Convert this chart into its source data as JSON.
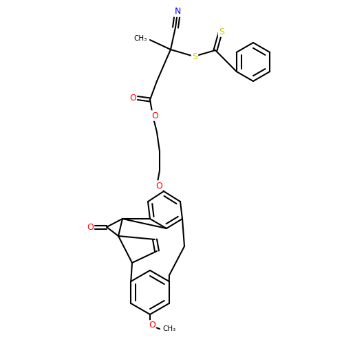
{
  "background_color": "#ffffff",
  "bond_color": "#000000",
  "atom_colors": {
    "N": "#0000ff",
    "O": "#ff0000",
    "S": "#cccc00",
    "C": "#000000"
  },
  "figsize": [
    5.0,
    5.0
  ],
  "dpi": 100
}
